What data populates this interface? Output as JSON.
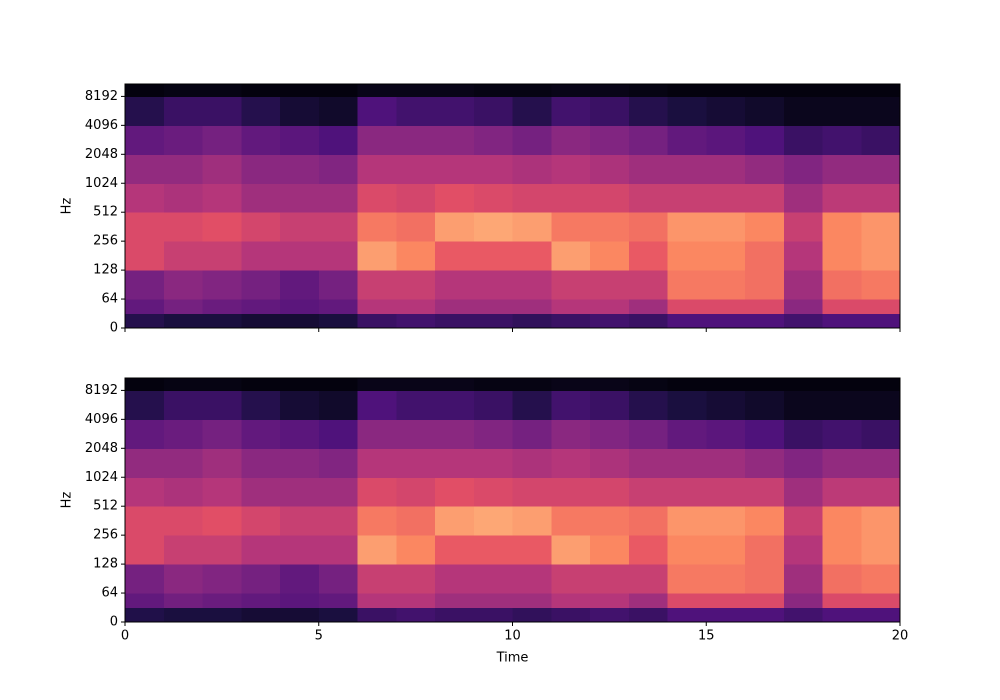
{
  "chart_data": [
    {
      "type": "heatmap",
      "ylabel": "Hz",
      "yscale": "symlog",
      "linthresh": 64,
      "cmap": "magma",
      "zlim": [
        0,
        1
      ],
      "x": [
        0,
        1,
        2,
        3,
        4,
        5,
        6,
        7,
        8,
        9,
        10,
        11,
        12,
        13,
        14,
        15,
        16,
        17,
        18,
        19,
        20
      ],
      "y": [
        0,
        32,
        64,
        128,
        256,
        512,
        1024,
        2048,
        4096,
        8192,
        11025
      ],
      "xlim": [
        0,
        20
      ],
      "ylim": [
        0,
        11025
      ],
      "xticks": [
        0,
        5,
        10,
        15,
        20
      ],
      "show_xticklabels": false,
      "yticks": [
        0,
        64,
        128,
        256,
        512,
        1024,
        2048,
        4096,
        8192
      ],
      "values": [
        [
          0.15,
          0.12,
          0.12,
          0.1,
          0.1,
          0.12,
          0.2,
          0.22,
          0.2,
          0.2,
          0.18,
          0.2,
          0.22,
          0.2,
          0.25,
          0.25,
          0.25,
          0.22,
          0.25,
          0.25
        ],
        [
          0.3,
          0.35,
          0.32,
          0.3,
          0.28,
          0.3,
          0.5,
          0.5,
          0.45,
          0.45,
          0.45,
          0.5,
          0.5,
          0.45,
          0.6,
          0.6,
          0.6,
          0.4,
          0.6,
          0.6
        ],
        [
          0.35,
          0.4,
          0.38,
          0.35,
          0.3,
          0.35,
          0.55,
          0.55,
          0.5,
          0.5,
          0.5,
          0.55,
          0.55,
          0.55,
          0.72,
          0.72,
          0.7,
          0.45,
          0.7,
          0.72
        ],
        [
          0.6,
          0.55,
          0.55,
          0.5,
          0.5,
          0.5,
          0.8,
          0.75,
          0.65,
          0.65,
          0.65,
          0.8,
          0.75,
          0.65,
          0.75,
          0.75,
          0.7,
          0.5,
          0.75,
          0.78
        ],
        [
          0.6,
          0.6,
          0.62,
          0.58,
          0.55,
          0.55,
          0.72,
          0.7,
          0.8,
          0.82,
          0.8,
          0.72,
          0.72,
          0.7,
          0.78,
          0.78,
          0.75,
          0.55,
          0.75,
          0.78
        ],
        [
          0.5,
          0.48,
          0.5,
          0.45,
          0.45,
          0.45,
          0.6,
          0.58,
          0.62,
          0.6,
          0.58,
          0.58,
          0.58,
          0.55,
          0.55,
          0.55,
          0.55,
          0.45,
          0.52,
          0.52
        ],
        [
          0.42,
          0.42,
          0.45,
          0.4,
          0.4,
          0.38,
          0.5,
          0.5,
          0.5,
          0.5,
          0.48,
          0.5,
          0.48,
          0.45,
          0.45,
          0.45,
          0.42,
          0.38,
          0.42,
          0.42
        ],
        [
          0.3,
          0.32,
          0.35,
          0.3,
          0.28,
          0.25,
          0.4,
          0.4,
          0.4,
          0.38,
          0.35,
          0.4,
          0.38,
          0.35,
          0.3,
          0.28,
          0.25,
          0.2,
          0.22,
          0.2
        ],
        [
          0.15,
          0.2,
          0.2,
          0.15,
          0.1,
          0.08,
          0.25,
          0.22,
          0.22,
          0.2,
          0.15,
          0.22,
          0.2,
          0.15,
          0.12,
          0.1,
          0.08,
          0.05,
          0.05,
          0.05
        ],
        [
          0.02,
          0.03,
          0.03,
          0.02,
          0.02,
          0.02,
          0.04,
          0.04,
          0.04,
          0.03,
          0.03,
          0.04,
          0.04,
          0.03,
          0.02,
          0.02,
          0.02,
          0.02,
          0.02,
          0.02
        ]
      ]
    },
    {
      "type": "heatmap",
      "ylabel": "Hz",
      "xlabel": "Time",
      "yscale": "symlog",
      "linthresh": 64,
      "cmap": "magma",
      "zlim": [
        0,
        1
      ],
      "x": [
        0,
        1,
        2,
        3,
        4,
        5,
        6,
        7,
        8,
        9,
        10,
        11,
        12,
        13,
        14,
        15,
        16,
        17,
        18,
        19,
        20
      ],
      "y": [
        0,
        32,
        64,
        128,
        256,
        512,
        1024,
        2048,
        4096,
        8192,
        11025
      ],
      "xlim": [
        0,
        20
      ],
      "ylim": [
        0,
        11025
      ],
      "xticks": [
        0,
        5,
        10,
        15,
        20
      ],
      "show_xticklabels": true,
      "yticks": [
        0,
        64,
        128,
        256,
        512,
        1024,
        2048,
        4096,
        8192
      ],
      "values": [
        [
          0.14,
          0.12,
          0.12,
          0.1,
          0.1,
          0.12,
          0.2,
          0.22,
          0.2,
          0.2,
          0.18,
          0.2,
          0.22,
          0.2,
          0.25,
          0.25,
          0.25,
          0.22,
          0.25,
          0.25
        ],
        [
          0.3,
          0.34,
          0.32,
          0.3,
          0.28,
          0.3,
          0.5,
          0.5,
          0.45,
          0.45,
          0.45,
          0.5,
          0.5,
          0.45,
          0.6,
          0.6,
          0.6,
          0.4,
          0.6,
          0.6
        ],
        [
          0.35,
          0.4,
          0.38,
          0.35,
          0.3,
          0.35,
          0.55,
          0.55,
          0.5,
          0.5,
          0.5,
          0.55,
          0.55,
          0.55,
          0.72,
          0.72,
          0.7,
          0.45,
          0.7,
          0.72
        ],
        [
          0.6,
          0.55,
          0.55,
          0.5,
          0.5,
          0.5,
          0.8,
          0.75,
          0.65,
          0.65,
          0.65,
          0.8,
          0.75,
          0.65,
          0.75,
          0.75,
          0.7,
          0.5,
          0.75,
          0.78
        ],
        [
          0.6,
          0.6,
          0.62,
          0.58,
          0.55,
          0.55,
          0.72,
          0.7,
          0.8,
          0.82,
          0.8,
          0.72,
          0.72,
          0.7,
          0.78,
          0.78,
          0.75,
          0.55,
          0.75,
          0.78
        ],
        [
          0.5,
          0.48,
          0.5,
          0.45,
          0.45,
          0.45,
          0.6,
          0.58,
          0.62,
          0.6,
          0.58,
          0.58,
          0.58,
          0.55,
          0.55,
          0.55,
          0.55,
          0.45,
          0.52,
          0.52
        ],
        [
          0.42,
          0.42,
          0.45,
          0.4,
          0.4,
          0.38,
          0.5,
          0.5,
          0.5,
          0.5,
          0.48,
          0.5,
          0.48,
          0.45,
          0.45,
          0.45,
          0.42,
          0.38,
          0.42,
          0.42
        ],
        [
          0.3,
          0.32,
          0.35,
          0.3,
          0.28,
          0.25,
          0.4,
          0.4,
          0.4,
          0.38,
          0.35,
          0.4,
          0.38,
          0.35,
          0.3,
          0.28,
          0.25,
          0.2,
          0.22,
          0.2
        ],
        [
          0.15,
          0.2,
          0.2,
          0.15,
          0.1,
          0.08,
          0.25,
          0.22,
          0.22,
          0.2,
          0.15,
          0.22,
          0.2,
          0.15,
          0.12,
          0.1,
          0.08,
          0.05,
          0.05,
          0.05
        ],
        [
          0.02,
          0.03,
          0.03,
          0.02,
          0.02,
          0.02,
          0.04,
          0.04,
          0.04,
          0.03,
          0.03,
          0.04,
          0.04,
          0.03,
          0.02,
          0.02,
          0.02,
          0.02,
          0.02,
          0.02
        ]
      ]
    }
  ]
}
